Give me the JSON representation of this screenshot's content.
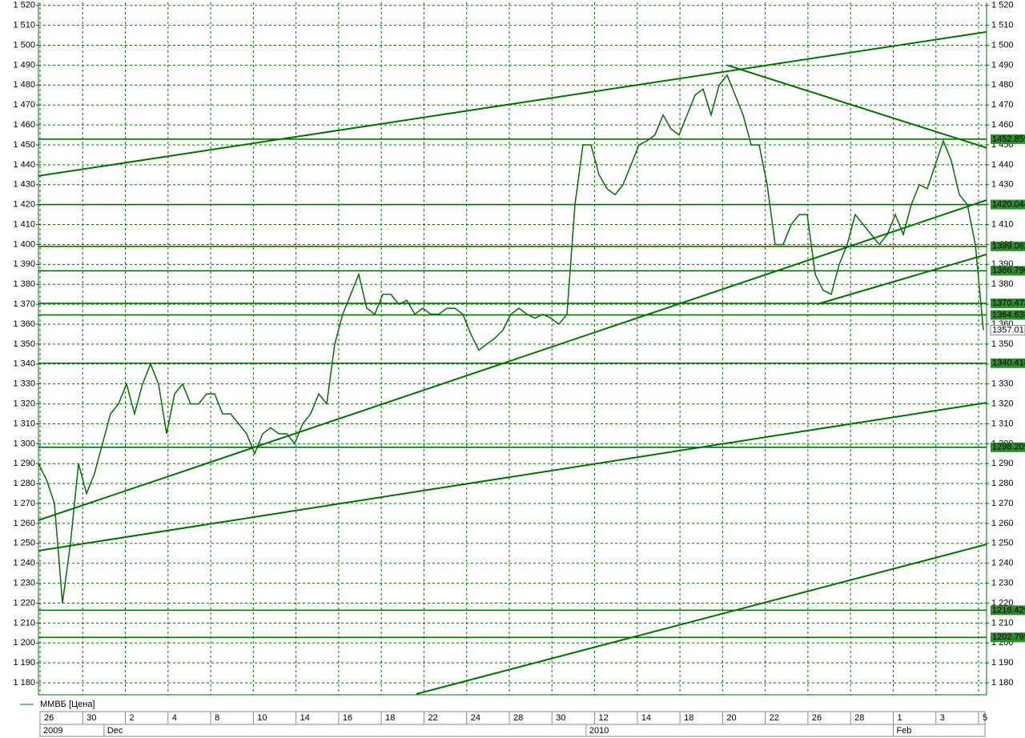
{
  "chart_data": {
    "type": "line",
    "series": [
      {
        "name": "ММВБ [Цена]",
        "color": "#007000",
        "values": [
          1290,
          1282,
          1270,
          1220,
          1250,
          1290,
          1275,
          1285,
          1300,
          1315,
          1320,
          1330,
          1315,
          1330,
          1340,
          1330,
          1305,
          1325,
          1330,
          1320,
          1320,
          1325,
          1325,
          1315,
          1315,
          1310,
          1305,
          1295,
          1305,
          1308,
          1305,
          1305,
          1300,
          1310,
          1315,
          1325,
          1320,
          1350,
          1365,
          1375,
          1385,
          1368,
          1365,
          1375,
          1375,
          1370,
          1372,
          1365,
          1368,
          1365,
          1365,
          1368,
          1368,
          1365,
          1355,
          1347,
          1350,
          1353,
          1357,
          1365,
          1368,
          1365,
          1363,
          1365,
          1363,
          1360,
          1365,
          1420,
          1450,
          1450,
          1435,
          1428,
          1425,
          1430,
          1440,
          1450,
          1452,
          1455,
          1465,
          1458,
          1455,
          1465,
          1475,
          1478,
          1465,
          1480,
          1485,
          1475,
          1465,
          1450,
          1450,
          1430,
          1400,
          1400,
          1410,
          1415,
          1415,
          1385,
          1377,
          1375,
          1390,
          1400,
          1415,
          1410,
          1405,
          1400,
          1405,
          1415,
          1405,
          1420,
          1430,
          1428,
          1440,
          1452,
          1442,
          1425,
          1420,
          1400,
          1357
        ]
      }
    ],
    "ylim": [
      1174,
      1521.5
    ],
    "yticks": [
      {
        "value": 1180,
        "label": "1 180"
      },
      {
        "value": 1190,
        "label": "1 190"
      },
      {
        "value": 1200,
        "label": "1 200"
      },
      {
        "value": 1210,
        "label": "1 210"
      },
      {
        "value": 1220,
        "label": "1 220"
      },
      {
        "value": 1230,
        "label": "1 230"
      },
      {
        "value": 1240,
        "label": "1 240"
      },
      {
        "value": 1250,
        "label": "1 250"
      },
      {
        "value": 1260,
        "label": "1 260"
      },
      {
        "value": 1270,
        "label": "1 270"
      },
      {
        "value": 1280,
        "label": "1 280"
      },
      {
        "value": 1290,
        "label": "1 290"
      },
      {
        "value": 1300,
        "label": "1 300"
      },
      {
        "value": 1310,
        "label": "1 310"
      },
      {
        "value": 1320,
        "label": "1 320"
      },
      {
        "value": 1330,
        "label": "1 330"
      },
      {
        "value": 1340,
        "label": "1 340"
      },
      {
        "value": 1350,
        "label": "1 350"
      },
      {
        "value": 1360,
        "label": "1 360"
      },
      {
        "value": 1370,
        "label": "1 370"
      },
      {
        "value": 1380,
        "label": "1 380"
      },
      {
        "value": 1390,
        "label": "1 390"
      },
      {
        "value": 1400,
        "label": "1 400"
      },
      {
        "value": 1410,
        "label": "1 410"
      },
      {
        "value": 1420,
        "label": "1 420"
      },
      {
        "value": 1430,
        "label": "1 430"
      },
      {
        "value": 1440,
        "label": "1 440"
      },
      {
        "value": 1450,
        "label": "1 450"
      },
      {
        "value": 1460,
        "label": "1 460"
      },
      {
        "value": 1470,
        "label": "1 470"
      },
      {
        "value": 1480,
        "label": "1 480"
      },
      {
        "value": 1490,
        "label": "1 490"
      },
      {
        "value": 1500,
        "label": "1 500"
      },
      {
        "value": 1510,
        "label": "1 510"
      },
      {
        "value": 1520,
        "label": "1 520"
      }
    ],
    "grid": true,
    "day_labels": [
      "26",
      "30",
      "2",
      "4",
      "8",
      "10",
      "14",
      "16",
      "18",
      "22",
      "24",
      "28",
      "30",
      "12",
      "14",
      "18",
      "20",
      "22",
      "26",
      "28",
      "1",
      "3",
      "5"
    ],
    "period_labels": [
      "2009",
      "Dec",
      "2010",
      "Feb"
    ],
    "levels": [
      {
        "value": 1452.859,
        "label": "1452.859"
      },
      {
        "value": 1420.044,
        "label": "1420.044"
      },
      {
        "value": 1399.062,
        "label": "1399.062"
      },
      {
        "value": 1386.79,
        "label": "1386.790"
      },
      {
        "value": 1370.473,
        "label": "1370.473"
      },
      {
        "value": 1364.638,
        "label": "1364.638"
      },
      {
        "value": 1340.418,
        "label": "1340.418"
      },
      {
        "value": 1298.209,
        "label": "1298.209"
      },
      {
        "value": 1216.429,
        "label": "1216.429"
      },
      {
        "value": 1202.795,
        "label": "1202.795"
      }
    ],
    "last_price": {
      "value": 1357.01,
      "label": "1357.01"
    },
    "trend_lines": [
      {
        "x": [
          0,
          118.4
        ],
        "y": [
          1434.4,
          1506.7
        ]
      },
      {
        "x": [
          86,
          118.4
        ],
        "y": [
          1490,
          1448.5
        ]
      },
      {
        "x": [
          0,
          118.4
        ],
        "y": [
          1261.6,
          1422.3
        ]
      },
      {
        "x": [
          97.2,
          118.4
        ],
        "y": [
          1370,
          1395
        ]
      },
      {
        "x": [
          0,
          118.4
        ],
        "y": [
          1246.3,
          1320.6
        ]
      },
      {
        "x": [
          47.2,
          118.4
        ],
        "y": [
          1174.4,
          1249.5
        ]
      }
    ]
  }
}
